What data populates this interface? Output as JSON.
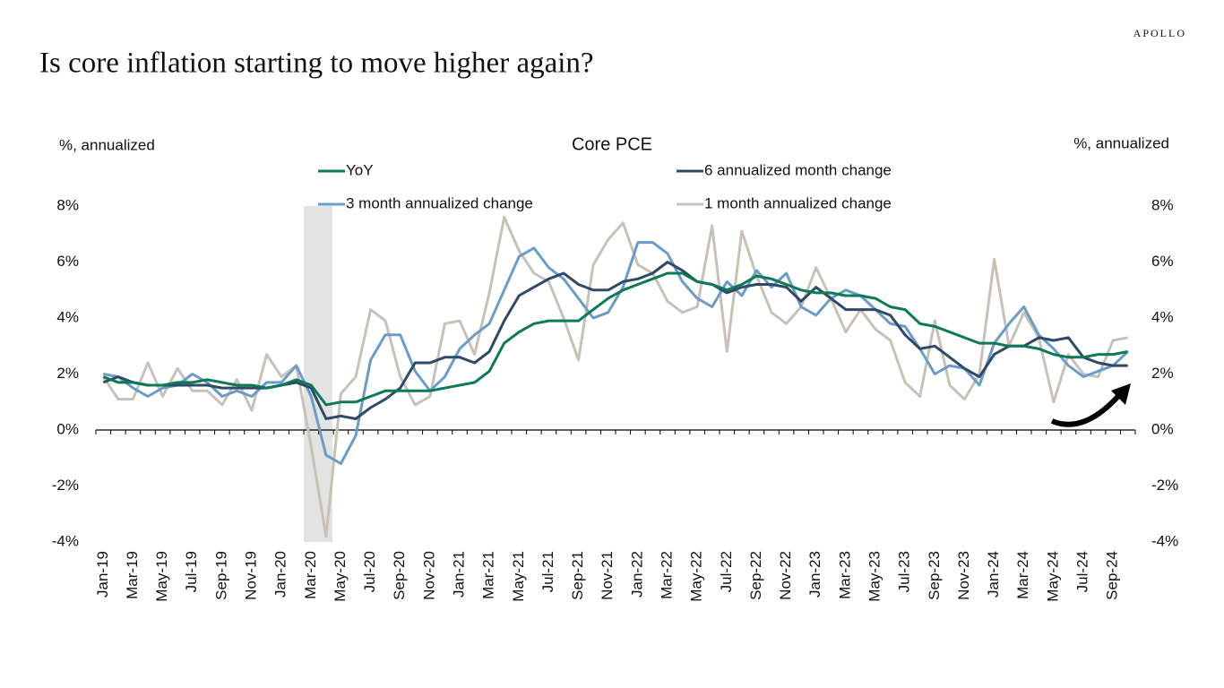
{
  "brand": "APOLLO",
  "headline": "Is core inflation starting to move higher again?",
  "chart_data": {
    "type": "line",
    "title": "Core PCE",
    "y_label": "%, annualized",
    "y2_label": "%, annualized",
    "categories": [
      "Jan-19",
      null,
      "Mar-19",
      null,
      "May-19",
      null,
      "Jul-19",
      null,
      "Sep-19",
      null,
      "Nov-19",
      null,
      "Jan-20",
      null,
      "Mar-20",
      null,
      "May-20",
      null,
      "Jul-20",
      null,
      "Sep-20",
      null,
      "Nov-20",
      null,
      "Jan-21",
      null,
      "Mar-21",
      null,
      "May-21",
      null,
      "Jul-21",
      null,
      "Sep-21",
      null,
      "Nov-21",
      null,
      "Jan-22",
      null,
      "Mar-22",
      null,
      "May-22",
      null,
      "Jul-22",
      null,
      "Sep-22",
      null,
      "Nov-22",
      null,
      "Jan-23",
      null,
      "Mar-23",
      null,
      "May-23",
      null,
      "Jul-23",
      null,
      "Sep-23",
      null,
      "Nov-23",
      null,
      "Jan-24",
      null,
      "Mar-24",
      null,
      "May-24",
      null,
      "Jul-24",
      null,
      "Sep-24",
      null
    ],
    "series": [
      {
        "name": "YoY",
        "color": "#0b7a57",
        "values": [
          1.9,
          1.7,
          1.7,
          1.6,
          1.6,
          1.7,
          1.7,
          1.8,
          1.7,
          1.6,
          1.6,
          1.5,
          1.6,
          1.8,
          1.6,
          0.9,
          1.0,
          1.0,
          1.2,
          1.4,
          1.4,
          1.4,
          1.4,
          1.5,
          1.6,
          1.7,
          2.1,
          3.1,
          3.5,
          3.8,
          3.9,
          3.9,
          3.9,
          4.3,
          4.7,
          5.0,
          5.2,
          5.4,
          5.6,
          5.6,
          5.3,
          5.2,
          5.0,
          5.2,
          5.5,
          5.4,
          5.2,
          5.0,
          4.9,
          4.9,
          4.8,
          4.8,
          4.7,
          4.4,
          4.3,
          3.8,
          3.7,
          3.5,
          3.3,
          3.1,
          3.1,
          3.0,
          3.0,
          2.9,
          2.7,
          2.6,
          2.6,
          2.7,
          2.7,
          2.8
        ]
      },
      {
        "name": "6 annualized month change",
        "color": "#2f4a66",
        "values": [
          1.7,
          1.9,
          1.7,
          1.6,
          1.6,
          1.6,
          1.6,
          1.6,
          1.5,
          1.5,
          1.5,
          1.5,
          1.6,
          1.7,
          1.5,
          0.4,
          0.5,
          0.4,
          0.8,
          1.1,
          1.5,
          2.4,
          2.4,
          2.6,
          2.6,
          2.4,
          2.8,
          3.9,
          4.8,
          5.1,
          5.4,
          5.6,
          5.2,
          5.0,
          5.0,
          5.3,
          5.4,
          5.6,
          6.0,
          5.7,
          5.3,
          5.2,
          4.9,
          5.1,
          5.2,
          5.2,
          5.1,
          4.6,
          5.1,
          4.7,
          4.3,
          4.3,
          4.3,
          4.1,
          3.4,
          2.9,
          3.0,
          2.6,
          2.2,
          1.9,
          2.7,
          3.0,
          3.0,
          3.3,
          3.2,
          3.3,
          2.6,
          2.4,
          2.3,
          2.3
        ]
      },
      {
        "name": "3 month annualized change",
        "color": "#6a9cca",
        "values": [
          2.0,
          1.9,
          1.5,
          1.2,
          1.5,
          1.6,
          2.0,
          1.7,
          1.2,
          1.4,
          1.2,
          1.7,
          1.7,
          2.3,
          1.2,
          -0.9,
          -1.2,
          -0.2,
          2.5,
          3.4,
          3.4,
          2.1,
          1.4,
          1.9,
          2.9,
          3.4,
          3.8,
          5.0,
          6.2,
          6.5,
          5.8,
          5.4,
          4.7,
          4.0,
          4.2,
          5.1,
          6.7,
          6.7,
          6.3,
          5.3,
          4.7,
          4.4,
          5.3,
          4.8,
          5.7,
          5.1,
          5.6,
          4.4,
          4.1,
          4.7,
          5.0,
          4.8,
          4.3,
          3.8,
          3.7,
          2.9,
          2.0,
          2.3,
          2.2,
          1.6,
          3.1,
          3.8,
          4.4,
          3.4,
          2.9,
          2.3,
          1.9,
          2.1,
          2.3,
          2.8
        ]
      },
      {
        "name": "1 month annualized change",
        "color": "#c8c1b8",
        "values": [
          1.9,
          1.1,
          1.1,
          2.4,
          1.2,
          2.2,
          1.4,
          1.4,
          0.9,
          1.8,
          0.7,
          2.7,
          1.9,
          2.3,
          -0.6,
          -3.8,
          1.3,
          1.9,
          4.3,
          3.9,
          1.9,
          0.9,
          1.2,
          3.8,
          3.9,
          2.7,
          4.9,
          7.6,
          6.4,
          5.6,
          5.3,
          4.0,
          2.5,
          5.9,
          6.8,
          7.4,
          5.9,
          5.6,
          4.6,
          4.2,
          4.4,
          7.3,
          2.8,
          7.1,
          5.5,
          4.2,
          3.8,
          4.4,
          5.8,
          4.7,
          3.5,
          4.3,
          3.6,
          3.2,
          1.7,
          1.2,
          3.9,
          1.6,
          1.1,
          2.0,
          6.1,
          3.0,
          4.2,
          3.3,
          1.0,
          2.7,
          2.0,
          1.9,
          3.2,
          3.3
        ]
      }
    ],
    "ylim": [
      -4,
      8
    ],
    "yticks": [
      {
        "value": -4,
        "label": "-4%"
      },
      {
        "value": -2,
        "label": "-2%"
      },
      {
        "value": 0,
        "label": "0%"
      },
      {
        "value": 2,
        "label": "2%"
      },
      {
        "value": 4,
        "label": "4%"
      },
      {
        "value": 6,
        "label": "6%"
      },
      {
        "value": 8,
        "label": "8%"
      }
    ],
    "y2lim": [
      -4,
      8
    ],
    "y2ticks": [
      {
        "value": -4,
        "label": "-4%"
      },
      {
        "value": -2,
        "label": "-2%"
      },
      {
        "value": 0,
        "label": "0%"
      },
      {
        "value": 2,
        "label": "2%"
      },
      {
        "value": 4,
        "label": "4%"
      },
      {
        "value": 6,
        "label": "6%"
      },
      {
        "value": 8,
        "label": "8%"
      }
    ]
  }
}
